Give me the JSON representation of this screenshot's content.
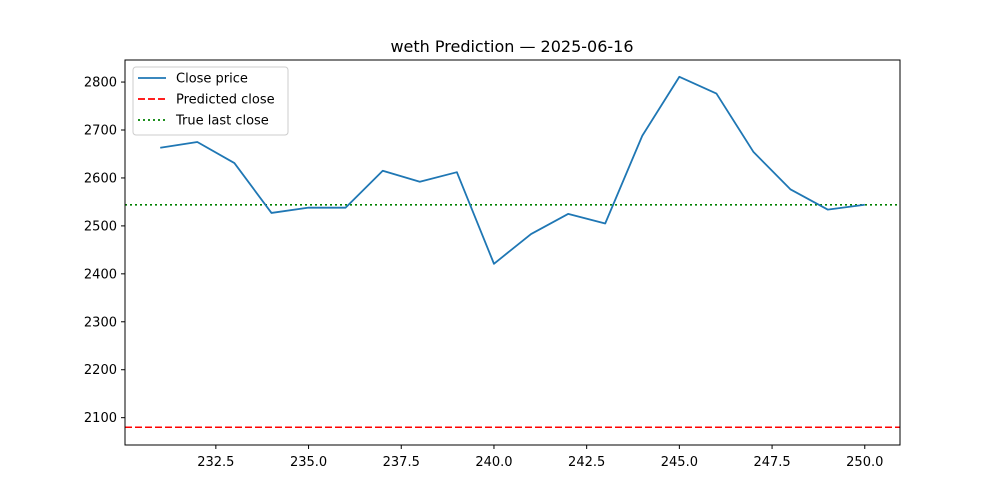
{
  "chart_data": {
    "type": "line",
    "title": "weth Prediction — 2025-06-16",
    "xlabel": "",
    "ylabel": "",
    "xlim": [
      230.05,
      250.95
    ],
    "ylim": [
      2043,
      2846
    ],
    "x_ticks": [
      232.5,
      235.0,
      237.5,
      240.0,
      242.5,
      245.0,
      247.5,
      250.0
    ],
    "x_tick_labels": [
      "232.5",
      "235.0",
      "237.5",
      "240.0",
      "242.5",
      "245.0",
      "247.5",
      "250.0"
    ],
    "y_ticks": [
      2100,
      2200,
      2300,
      2400,
      2500,
      2600,
      2700,
      2800
    ],
    "y_tick_labels": [
      "2100",
      "2200",
      "2300",
      "2400",
      "2500",
      "2600",
      "2700",
      "2800"
    ],
    "grid": false,
    "legend_position": "top-left",
    "series": [
      {
        "name": "Close price",
        "style": "solid",
        "color": "#1f77b4",
        "x": [
          231,
          232,
          233,
          234,
          235,
          236,
          237,
          238,
          239,
          240,
          241,
          242,
          243,
          244,
          245,
          246,
          247,
          248,
          249,
          250
        ],
        "y": [
          2663,
          2675,
          2631,
          2527,
          2538,
          2538,
          2615,
          2592,
          2612,
          2421,
          2483,
          2525,
          2505,
          2688,
          2811,
          2776,
          2654,
          2576,
          2534,
          2544
        ]
      }
    ],
    "reference_lines": [
      {
        "name": "Predicted close",
        "y": 2080,
        "style": "dashed",
        "color": "#ff0000"
      },
      {
        "name": "True last close",
        "y": 2544,
        "style": "dotted",
        "color": "#008000"
      }
    ]
  }
}
